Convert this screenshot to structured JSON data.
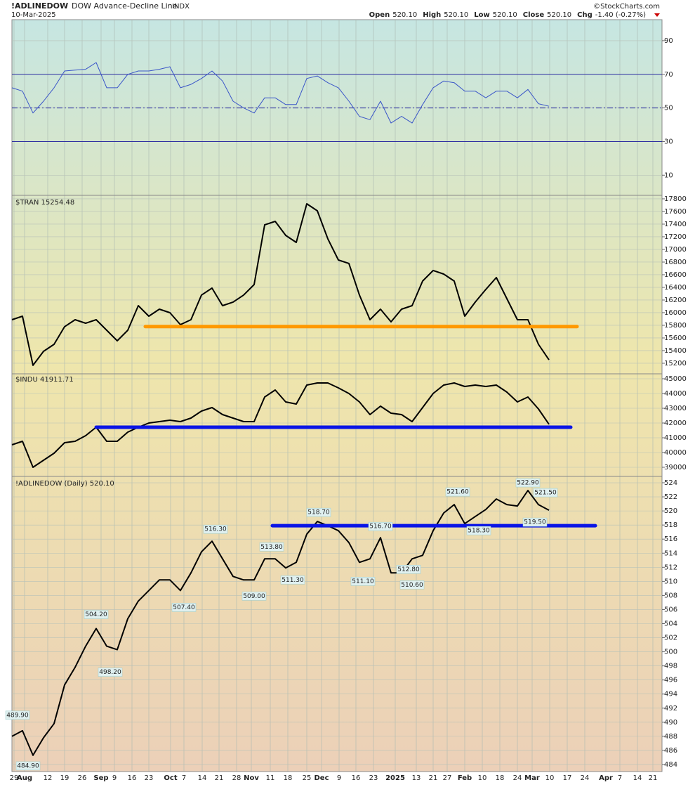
{
  "header": {
    "symbol": "!ADLINEDOW",
    "name": "DOW Advance-Decline Line",
    "exchange": "INDX",
    "date": "10-Mar-2025",
    "credit": "©StockCharts.com",
    "quote": [
      {
        "label": "Open",
        "value": "520.10"
      },
      {
        "label": "High",
        "value": "520.10"
      },
      {
        "label": "Low",
        "value": "520.10"
      },
      {
        "label": "Close",
        "value": "520.10"
      },
      {
        "label": "Chg",
        "value": "-1.40 (-0.27%)"
      }
    ]
  },
  "chart_data": {
    "type": "line",
    "grid": true,
    "x": [
      0,
      3,
      6,
      9,
      12,
      15,
      18,
      21,
      24,
      27,
      30,
      33,
      36,
      39,
      42,
      45,
      48,
      51,
      54,
      57,
      60,
      63,
      66,
      69,
      72,
      75,
      78,
      81,
      84,
      87,
      90,
      93,
      96,
      99,
      102,
      105,
      108,
      111,
      114,
      117,
      120,
      123,
      126,
      129,
      132,
      135,
      138,
      141,
      144,
      147,
      150,
      153
    ],
    "xlim": [
      0,
      185.2
    ],
    "xticks": [
      {
        "value": 0.6,
        "label": "29"
      },
      {
        "value": 3.6,
        "label": "Aug"
      },
      {
        "value": 10.2,
        "label": "12"
      },
      {
        "value": 15,
        "label": "19"
      },
      {
        "value": 20,
        "label": "26"
      },
      {
        "value": 25.4,
        "label": "Sep"
      },
      {
        "value": 29.2,
        "label": "9"
      },
      {
        "value": 34.2,
        "label": "16"
      },
      {
        "value": 39,
        "label": "23"
      },
      {
        "value": 45.2,
        "label": "Oct"
      },
      {
        "value": 49,
        "label": "7"
      },
      {
        "value": 54.2,
        "label": "14"
      },
      {
        "value": 59,
        "label": "21"
      },
      {
        "value": 64,
        "label": "28"
      },
      {
        "value": 68.2,
        "label": "Nov"
      },
      {
        "value": 73.6,
        "label": "11"
      },
      {
        "value": 78.6,
        "label": "18"
      },
      {
        "value": 84,
        "label": "25"
      },
      {
        "value": 88.2,
        "label": "Dec"
      },
      {
        "value": 93.2,
        "label": "9"
      },
      {
        "value": 98,
        "label": "16"
      },
      {
        "value": 103,
        "label": "23"
      },
      {
        "value": 109.2,
        "label": "2025"
      },
      {
        "value": 115.2,
        "label": "13"
      },
      {
        "value": 120,
        "label": "21"
      },
      {
        "value": 124,
        "label": "27"
      },
      {
        "value": 129,
        "label": "Feb"
      },
      {
        "value": 134,
        "label": "10"
      },
      {
        "value": 139,
        "label": "18"
      },
      {
        "value": 144,
        "label": "24"
      },
      {
        "value": 148.2,
        "label": "Mar"
      },
      {
        "value": 153.2,
        "label": "10"
      },
      {
        "value": 158.2,
        "label": "17"
      },
      {
        "value": 163.2,
        "label": "24"
      },
      {
        "value": 169.2,
        "label": "Apr"
      },
      {
        "value": 173.2,
        "label": "7"
      },
      {
        "value": 178.2,
        "label": "14"
      },
      {
        "value": 182.6,
        "label": "21"
      }
    ],
    "panels": [
      {
        "color": "#3a55c8",
        "values": [
          62,
          60,
          47,
          54,
          62,
          72,
          72.5,
          73,
          77,
          62,
          62,
          70,
          72,
          72,
          73,
          74.5,
          62,
          64,
          67.5,
          72,
          66,
          54,
          50,
          47,
          56,
          56,
          52,
          52,
          67.5,
          69,
          65,
          62,
          54,
          45,
          43,
          54,
          41,
          45,
          41,
          52,
          62,
          66,
          65,
          60,
          60,
          56,
          60,
          60,
          56,
          61,
          52.5,
          51
        ],
        "ylim": [
          -2,
          102.5
        ],
        "yticks": [
          90,
          70,
          50,
          30,
          10
        ],
        "levels": [
          {
            "value": 70,
            "style": "solid"
          },
          {
            "value": 50,
            "style": "dashdot"
          },
          {
            "value": 30,
            "style": "solid"
          }
        ],
        "level_color": "#2a2aa0"
      },
      {
        "label": "$TRAN 15254.48",
        "color": "#000000",
        "values": [
          15889,
          15944,
          15167,
          15389,
          15500,
          15778,
          15889,
          15833,
          15889,
          15722,
          15555,
          15722,
          16111,
          15944,
          16055,
          16000,
          15811,
          15889,
          16278,
          16389,
          16111,
          16167,
          16278,
          16444,
          17389,
          17444,
          17222,
          17111,
          17722,
          17611,
          17167,
          16833,
          16778,
          16278,
          15889,
          16055,
          15855,
          16055,
          16111,
          16500,
          16667,
          16611,
          16500,
          15944,
          16167,
          16367,
          16555,
          16222,
          15889,
          15889,
          15500,
          15254
        ],
        "ylim": [
          15033,
          17833
        ],
        "yticks": [
          17800,
          17600,
          17400,
          17200,
          17000,
          16800,
          16600,
          16400,
          16200,
          16000,
          15800,
          15600,
          15400,
          15200
        ],
        "hlines": [
          {
            "value": 15780,
            "x": [
              38,
              161
            ],
            "color": "#ff9900"
          }
        ]
      },
      {
        "label": "$INDU 41911.71",
        "color": "#000000",
        "values": [
          40524,
          40762,
          39000,
          39476,
          39952,
          40667,
          40762,
          41143,
          41714,
          40762,
          40762,
          41381,
          41714,
          42000,
          42095,
          42190,
          42095,
          42333,
          42810,
          43048,
          42571,
          42333,
          42095,
          42095,
          43762,
          44238,
          43429,
          43286,
          44571,
          44714,
          44714,
          44381,
          44000,
          43429,
          42571,
          43143,
          42667,
          42571,
          42095,
          43048,
          44000,
          44571,
          44714,
          44476,
          44571,
          44476,
          44571,
          44095,
          43429,
          43762,
          42952,
          41912
        ],
        "ylim": [
          38381,
          45333
        ],
        "yticks": [
          45000,
          44000,
          43000,
          42000,
          41000,
          40000,
          39000
        ],
        "hlines": [
          {
            "value": 41714,
            "x": [
              24,
              159.2
            ],
            "color": "#0a14e6"
          }
        ]
      },
      {
        "label": "!ADLINEDOW (Daily) 520.10",
        "color": "#000000",
        "values": [
          488,
          488.8,
          485.3,
          487.8,
          489.8,
          495.3,
          497.8,
          500.8,
          503.3,
          500.8,
          500.3,
          504.7,
          507.2,
          508.7,
          510.2,
          510.2,
          508.7,
          511.2,
          514.2,
          515.7,
          513.2,
          510.7,
          510.2,
          510.2,
          513.2,
          513.2,
          511.9,
          512.7,
          516.7,
          518.5,
          517.9,
          517.2,
          515.5,
          512.7,
          513.2,
          516.2,
          511.2,
          511.2,
          513.2,
          513.7,
          517.2,
          519.7,
          520.9,
          518.2,
          519.2,
          520.2,
          521.7,
          520.9,
          520.7,
          522.9,
          520.9,
          520.1
        ],
        "ylim": [
          483,
          524.7
        ],
        "yticks": [
          524,
          522,
          520,
          518,
          516,
          514,
          512,
          510,
          508,
          506,
          504,
          502,
          500,
          498,
          496,
          494,
          492,
          490,
          488,
          486,
          484
        ],
        "hlines": [
          {
            "value": 517.9,
            "x": [
              74.2,
              166.2
            ],
            "color": "#0a14e6"
          }
        ],
        "annotations": [
          {
            "x": 1.6,
            "value": 489.9,
            "label": "489.90"
          },
          {
            "x": 4.6,
            "value": 484.9,
            "label": "484.90"
          },
          {
            "x": 24,
            "value": 504.2,
            "label": "504.20"
          },
          {
            "x": 28,
            "value": 498.2,
            "label": "498.20"
          },
          {
            "x": 49,
            "value": 507.4,
            "label": "507.40"
          },
          {
            "x": 58,
            "value": 516.3,
            "label": "516.30"
          },
          {
            "x": 69,
            "value": 509,
            "label": "509.00"
          },
          {
            "x": 74,
            "value": 513.8,
            "label": "513.80"
          },
          {
            "x": 80,
            "value": 511.3,
            "label": "511.30"
          },
          {
            "x": 87.4,
            "value": 518.7,
            "label": "518.70"
          },
          {
            "x": 100,
            "value": 511.1,
            "label": "511.10"
          },
          {
            "x": 105,
            "value": 516.7,
            "label": "516.70"
          },
          {
            "x": 113,
            "value": 512.8,
            "label": "512.80"
          },
          {
            "x": 114,
            "value": 510.6,
            "label": "510.60"
          },
          {
            "x": 127,
            "value": 521.6,
            "label": "521.60"
          },
          {
            "x": 133,
            "value": 518.3,
            "label": "518.30"
          },
          {
            "x": 147,
            "value": 522.9,
            "label": "522.90"
          },
          {
            "x": 149,
            "value": 519.5,
            "label": "519.50"
          },
          {
            "x": 152,
            "value": 521.5,
            "label": "521.50"
          }
        ]
      }
    ]
  }
}
